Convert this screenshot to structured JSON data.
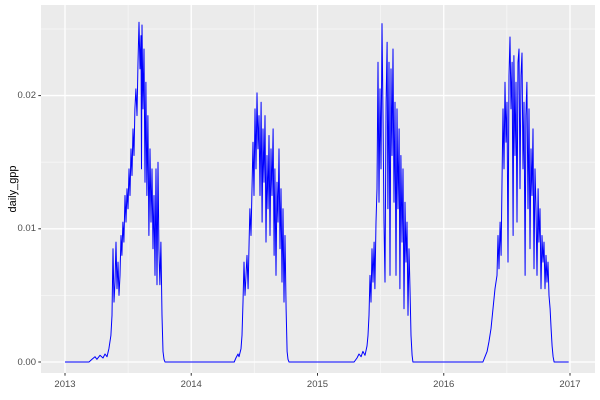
{
  "figure": {
    "background": "#FFFFFF",
    "panel_background": "#EBEBEB",
    "grid_major_color": "#FFFFFF",
    "grid_minor_color": "#F7F7F7",
    "tick_mark_color": "#333333",
    "tick_label_color": "#4D4D4D",
    "axis_title_color": "#000000"
  },
  "chart_data": {
    "type": "line",
    "title": "",
    "xlabel": "",
    "ylabel": "daily_gpp",
    "grid": true,
    "legend": "none",
    "xlim": [
      2012.81,
      2017.198
    ],
    "ylim": [
      -0.000825,
      0.0268
    ],
    "x_ticks": {
      "values": [
        2013,
        2014,
        2015,
        2016,
        2017
      ],
      "labels": [
        "2013",
        "2014",
        "2015",
        "2016",
        "2017"
      ]
    },
    "y_ticks": {
      "values": [
        0,
        0.01,
        0.02
      ],
      "labels": [
        "0.00",
        "0.01",
        "0.02"
      ]
    },
    "x_minor": [
      2013.5,
      2014.5,
      2015.5,
      2016.5
    ],
    "y_minor": [
      0.005,
      0.015,
      0.025
    ],
    "series": [
      {
        "name": "daily_gpp",
        "color": "#0000FF",
        "points": [
          [
            2013.0,
            0
          ],
          [
            2013.19,
            0
          ],
          [
            2013.214,
            0.0002
          ],
          [
            2013.238,
            0.0004
          ],
          [
            2013.253,
            0.0002
          ],
          [
            2013.277,
            0.0005
          ],
          [
            2013.301,
            0.0003
          ],
          [
            2013.317,
            0.0006
          ],
          [
            2013.333,
            0.0004
          ],
          [
            2013.348,
            0.001
          ],
          [
            2013.364,
            0.002
          ],
          [
            2013.372,
            0.0035
          ],
          [
            2013.38,
            0.0085
          ],
          [
            2013.388,
            0.0045
          ],
          [
            2013.396,
            0.006
          ],
          [
            2013.404,
            0.009
          ],
          [
            2013.412,
            0.0055
          ],
          [
            2013.42,
            0.0075
          ],
          [
            2013.428,
            0.005
          ],
          [
            2013.436,
            0.0065
          ],
          [
            2013.444,
            0.0095
          ],
          [
            2013.451,
            0.008
          ],
          [
            2013.459,
            0.0105
          ],
          [
            2013.467,
            0.009
          ],
          [
            2013.475,
            0.0125
          ],
          [
            2013.483,
            0.0105
          ],
          [
            2013.491,
            0.013
          ],
          [
            2013.499,
            0.0115
          ],
          [
            2013.507,
            0.0145
          ],
          [
            2013.515,
            0.0125
          ],
          [
            2013.523,
            0.016
          ],
          [
            2013.531,
            0.014
          ],
          [
            2013.539,
            0.0175
          ],
          [
            2013.547,
            0.0155
          ],
          [
            2013.554,
            0.019
          ],
          [
            2013.562,
            0.0205
          ],
          [
            2013.57,
            0.0185
          ],
          [
            2013.578,
            0.0225
          ],
          [
            2013.586,
            0.0255
          ],
          [
            2013.594,
            0.022
          ],
          [
            2013.602,
            0.0245
          ],
          [
            2013.606,
            0.0145
          ],
          [
            2013.61,
            0.0253
          ],
          [
            2013.618,
            0.019
          ],
          [
            2013.626,
            0.0235
          ],
          [
            2013.634,
            0.0135
          ],
          [
            2013.641,
            0.021
          ],
          [
            2013.649,
            0.0125
          ],
          [
            2013.657,
            0.0185
          ],
          [
            2013.665,
            0.0095
          ],
          [
            2013.673,
            0.016
          ],
          [
            2013.681,
            0.0105
          ],
          [
            2013.689,
            0.0145
          ],
          [
            2013.697,
            0.0085
          ],
          [
            2013.705,
            0.0125
          ],
          [
            2013.713,
            0.0065
          ],
          [
            2013.721,
            0.0145
          ],
          [
            2013.729,
            0.0058
          ],
          [
            2013.737,
            0.015
          ],
          [
            2013.744,
            0.0085
          ],
          [
            2013.752,
            0.0058
          ],
          [
            2013.76,
            0.009
          ],
          [
            2013.768,
            0.0035
          ],
          [
            2013.776,
            0.0008
          ],
          [
            2013.784,
            0.0002
          ],
          [
            2013.792,
            0
          ],
          [
            2014.34,
            0
          ],
          [
            2014.354,
            0.0003
          ],
          [
            2014.37,
            0.0006
          ],
          [
            2014.378,
            0.0004
          ],
          [
            2014.394,
            0.001
          ],
          [
            2014.402,
            0.002
          ],
          [
            2014.41,
            0.0045
          ],
          [
            2014.418,
            0.0075
          ],
          [
            2014.426,
            0.005
          ],
          [
            2014.434,
            0.0065
          ],
          [
            2014.442,
            0.008
          ],
          [
            2014.45,
            0.0055
          ],
          [
            2014.458,
            0.009
          ],
          [
            2014.465,
            0.0115
          ],
          [
            2014.473,
            0.0095
          ],
          [
            2014.481,
            0.013
          ],
          [
            2014.489,
            0.0165
          ],
          [
            2014.497,
            0.0125
          ],
          [
            2014.505,
            0.019
          ],
          [
            2014.513,
            0.0145
          ],
          [
            2014.521,
            0.0202
          ],
          [
            2014.529,
            0.016
          ],
          [
            2014.537,
            0.0185
          ],
          [
            2014.545,
            0.0125
          ],
          [
            2014.553,
            0.0195
          ],
          [
            2014.561,
            0.0105
          ],
          [
            2014.568,
            0.0175
          ],
          [
            2014.576,
            0.0135
          ],
          [
            2014.584,
            0.0185
          ],
          [
            2014.592,
            0.009
          ],
          [
            2014.6,
            0.0155
          ],
          [
            2014.608,
            0.0115
          ],
          [
            2014.616,
            0.017
          ],
          [
            2014.624,
            0.0095
          ],
          [
            2014.632,
            0.016
          ],
          [
            2014.64,
            0.0125
          ],
          [
            2014.648,
            0.0175
          ],
          [
            2014.656,
            0.008
          ],
          [
            2014.663,
            0.0145
          ],
          [
            2014.671,
            0.0065
          ],
          [
            2014.679,
            0.0135
          ],
          [
            2014.687,
            0.0105
          ],
          [
            2014.695,
            0.016
          ],
          [
            2014.703,
            0.0085
          ],
          [
            2014.711,
            0.013
          ],
          [
            2014.719,
            0.006
          ],
          [
            2014.727,
            0.0115
          ],
          [
            2014.735,
            0.0045
          ],
          [
            2014.743,
            0.0095
          ],
          [
            2014.751,
            0.004
          ],
          [
            2014.759,
            0.0008
          ],
          [
            2014.766,
            0.0002
          ],
          [
            2014.774,
            0
          ],
          [
            2015.29,
            0
          ],
          [
            2015.313,
            0.0003
          ],
          [
            2015.329,
            0.0006
          ],
          [
            2015.345,
            0.0004
          ],
          [
            2015.36,
            0.0008
          ],
          [
            2015.376,
            0.0005
          ],
          [
            2015.392,
            0.0012
          ],
          [
            2015.4,
            0.002
          ],
          [
            2015.408,
            0.0035
          ],
          [
            2015.416,
            0.0065
          ],
          [
            2015.424,
            0.0045
          ],
          [
            2015.432,
            0.0085
          ],
          [
            2015.44,
            0.006
          ],
          [
            2015.448,
            0.009
          ],
          [
            2015.455,
            0.0055
          ],
          [
            2015.463,
            0.0105
          ],
          [
            2015.471,
            0.013
          ],
          [
            2015.479,
            0.0225
          ],
          [
            2015.487,
            0.012
          ],
          [
            2015.495,
            0.0205
          ],
          [
            2015.503,
            0.0145
          ],
          [
            2015.511,
            0.0254
          ],
          [
            2015.519,
            0.0185
          ],
          [
            2015.527,
            0.0105
          ],
          [
            2015.535,
            0.006
          ],
          [
            2015.543,
            0.0195
          ],
          [
            2015.551,
            0.024
          ],
          [
            2015.558,
            0.0115
          ],
          [
            2015.566,
            0.0225
          ],
          [
            2015.574,
            0.0065
          ],
          [
            2015.582,
            0.022
          ],
          [
            2015.59,
            0.0155
          ],
          [
            2015.598,
            0.0235
          ],
          [
            2015.606,
            0.012
          ],
          [
            2015.614,
            0.0195
          ],
          [
            2015.622,
            0.0065
          ],
          [
            2015.63,
            0.019
          ],
          [
            2015.638,
            0.0115
          ],
          [
            2015.646,
            0.0175
          ],
          [
            2015.653,
            0.0055
          ],
          [
            2015.661,
            0.0155
          ],
          [
            2015.669,
            0.009
          ],
          [
            2015.677,
            0.0145
          ],
          [
            2015.685,
            0.004
          ],
          [
            2015.693,
            0.012
          ],
          [
            2015.701,
            0.0075
          ],
          [
            2015.709,
            0.0105
          ],
          [
            2015.717,
            0.0035
          ],
          [
            2015.725,
            0.0085
          ],
          [
            2015.733,
            0.0055
          ],
          [
            2015.741,
            0.002
          ],
          [
            2015.749,
            0.0005
          ],
          [
            2015.756,
            0
          ],
          [
            2016.31,
            0
          ],
          [
            2016.327,
            0.0004
          ],
          [
            2016.343,
            0.0008
          ],
          [
            2016.358,
            0.0015
          ],
          [
            2016.374,
            0.0025
          ],
          [
            2016.39,
            0.004
          ],
          [
            2016.406,
            0.0055
          ],
          [
            2016.422,
            0.0065
          ],
          [
            2016.43,
            0.0095
          ],
          [
            2016.438,
            0.007
          ],
          [
            2016.446,
            0.0105
          ],
          [
            2016.454,
            0.008
          ],
          [
            2016.461,
            0.0135
          ],
          [
            2016.469,
            0.019
          ],
          [
            2016.477,
            0.0145
          ],
          [
            2016.485,
            0.021
          ],
          [
            2016.493,
            0.0165
          ],
          [
            2016.501,
            0.0195
          ],
          [
            2016.509,
            0.0075
          ],
          [
            2016.517,
            0.0215
          ],
          [
            2016.525,
            0.0244
          ],
          [
            2016.533,
            0.019
          ],
          [
            2016.541,
            0.0225
          ],
          [
            2016.549,
            0.0095
          ],
          [
            2016.556,
            0.023
          ],
          [
            2016.564,
            0.0155
          ],
          [
            2016.572,
            0.021
          ],
          [
            2016.58,
            0.0105
          ],
          [
            2016.588,
            0.0225
          ],
          [
            2016.596,
            0.0235
          ],
          [
            2016.604,
            0.013
          ],
          [
            2016.612,
            0.0215
          ],
          [
            2016.62,
            0.0232
          ],
          [
            2016.628,
            0.0145
          ],
          [
            2016.636,
            0.0195
          ],
          [
            2016.644,
            0.0065
          ],
          [
            2016.651,
            0.0185
          ],
          [
            2016.659,
            0.021
          ],
          [
            2016.667,
            0.0115
          ],
          [
            2016.675,
            0.019
          ],
          [
            2016.683,
            0.0085
          ],
          [
            2016.691,
            0.016
          ],
          [
            2016.699,
            0.0125
          ],
          [
            2016.707,
            0.0175
          ],
          [
            2016.715,
            0.007
          ],
          [
            2016.723,
            0.0145
          ],
          [
            2016.731,
            0.0115
          ],
          [
            2016.739,
            0.0065
          ],
          [
            2016.747,
            0.013
          ],
          [
            2016.754,
            0.009
          ],
          [
            2016.762,
            0.0115
          ],
          [
            2016.77,
            0.0055
          ],
          [
            2016.778,
            0.0095
          ],
          [
            2016.786,
            0.0075
          ],
          [
            2016.794,
            0.009
          ],
          [
            2016.802,
            0.0055
          ],
          [
            2016.81,
            0.008
          ],
          [
            2016.818,
            0.006
          ],
          [
            2016.826,
            0.0075
          ],
          [
            2016.834,
            0.005
          ],
          [
            2016.842,
            0.004
          ],
          [
            2016.85,
            0.0025
          ],
          [
            2016.858,
            0.0012
          ],
          [
            2016.866,
            0.0004
          ],
          [
            2016.874,
            0
          ],
          [
            2016.99,
            0
          ]
        ]
      }
    ]
  }
}
